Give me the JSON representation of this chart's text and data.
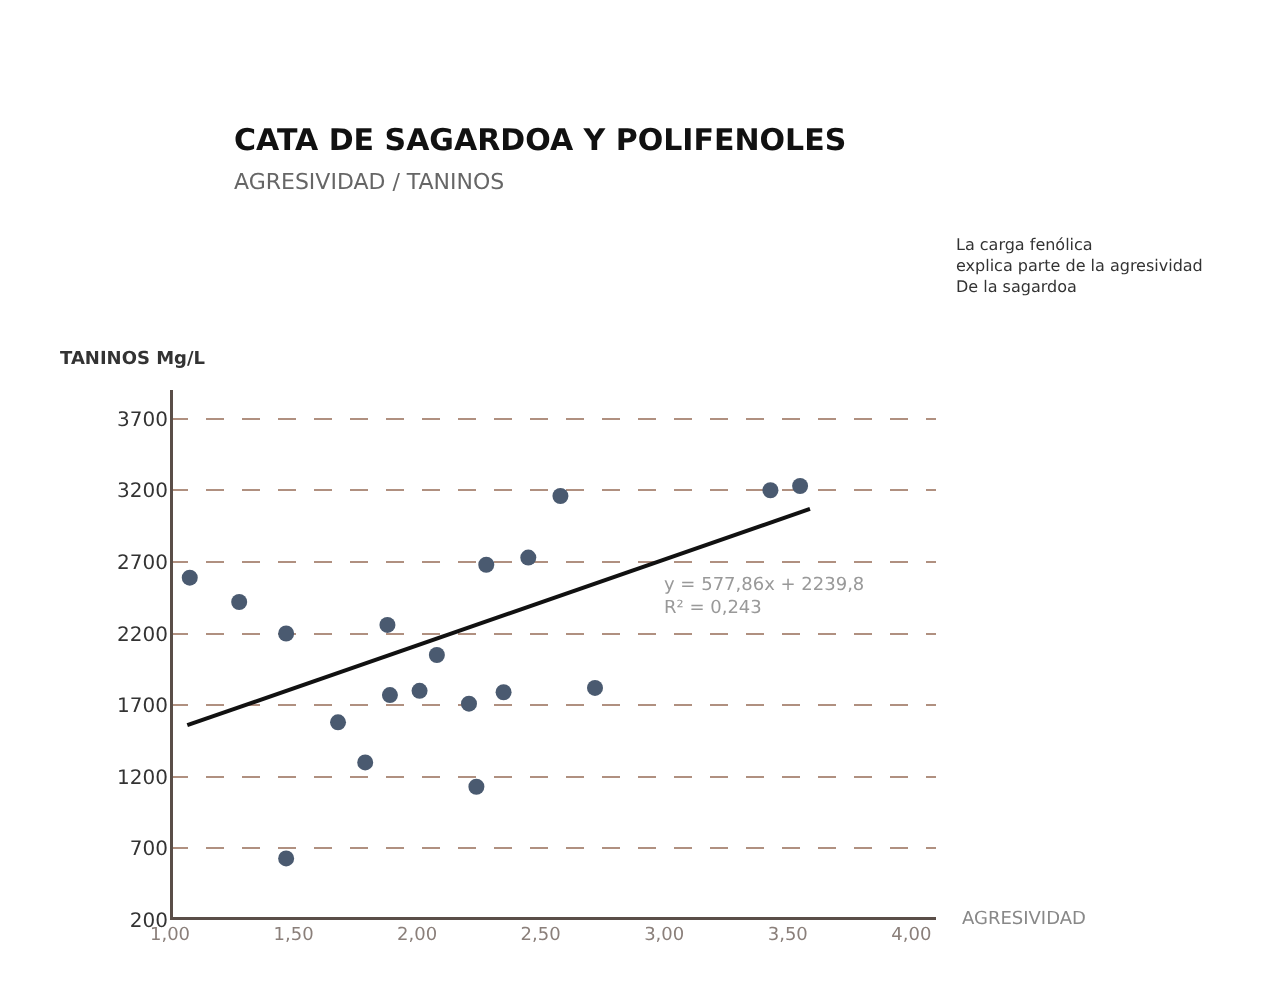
{
  "chart_data": {
    "type": "scatter",
    "title": "CATA DE SAGARDOA Y POLIFENOLES",
    "subtitle": "AGRESIVIDAD / TANINOS",
    "xlabel": "AGRESIVIDAD",
    "ylabel": "TANINOS Mg/L",
    "annotations": [
      "La carga fenólica\nexplica parte de la agresividad\nDe la sagardoa",
      "y = 577,86x + 2239,8\nR² = 0,243"
    ],
    "series": [
      {
        "color": "#4a5a70",
        "marker": "circle",
        "x": [
          1.08,
          1.28,
          1.47,
          2.58,
          2.28,
          2.45,
          1.88,
          2.08,
          1.89,
          2.01,
          2.21,
          2.35,
          2.72,
          1.68,
          1.79,
          2.24,
          1.47,
          3.43,
          3.55
        ],
        "values": [
          2590,
          2420,
          2200,
          3160,
          2680,
          2730,
          2260,
          2050,
          1770,
          1800,
          1710,
          1790,
          1820,
          1580,
          1300,
          1130,
          630,
          3200,
          3230
        ]
      },
      {
        "type": "line",
        "color": "#111111",
        "line_style": "solid",
        "x": [
          1.07,
          3.59
        ],
        "values": [
          1560,
          3070
        ]
      }
    ],
    "xlim": [
      1.0,
      4.1
    ],
    "xticks": [
      {
        "value": 1,
        "label": "1,00"
      },
      {
        "value": 1.5,
        "label": "1,50"
      },
      {
        "value": 2,
        "label": "2,00"
      },
      {
        "value": 2.5,
        "label": "2,50"
      },
      {
        "value": 3,
        "label": "3,00"
      },
      {
        "value": 3.5,
        "label": "3,50"
      },
      {
        "value": 4,
        "label": "4,00"
      }
    ],
    "ylim": [
      200,
      3900
    ],
    "yticks": [
      200,
      700,
      1200,
      1700,
      2200,
      2700,
      3200,
      3700
    ],
    "grid": "y"
  }
}
